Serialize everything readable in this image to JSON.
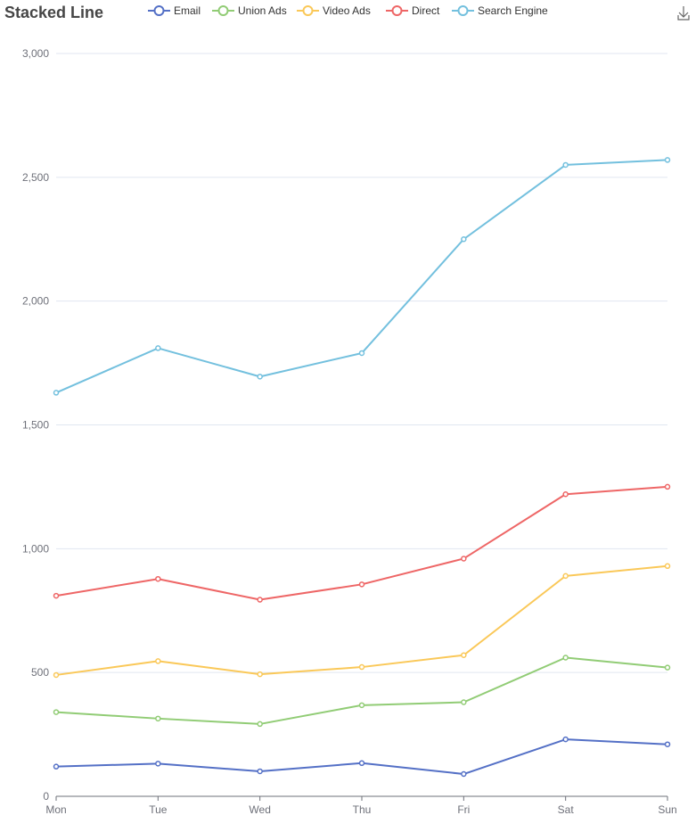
{
  "chart_data": {
    "type": "line",
    "title": "Stacked Line",
    "categories": [
      "Mon",
      "Tue",
      "Wed",
      "Thu",
      "Fri",
      "Sat",
      "Sun"
    ],
    "stacked": true,
    "ylim": [
      0,
      3000
    ],
    "yticks": [
      0,
      500,
      1000,
      1500,
      2000,
      2500,
      3000
    ],
    "ytick_labels": [
      "0",
      "500",
      "1,000",
      "1,500",
      "2,000",
      "2,500",
      "3,000"
    ],
    "grid": "horizontal",
    "legend_position": "top",
    "series": [
      {
        "name": "Email",
        "color": "#5470c6",
        "values": [
          120,
          132,
          101,
          134,
          90,
          230,
          210
        ]
      },
      {
        "name": "Union Ads",
        "color": "#91cc75",
        "values": [
          220,
          182,
          191,
          234,
          290,
          330,
          310
        ]
      },
      {
        "name": "Video Ads",
        "color": "#fac858",
        "values": [
          150,
          232,
          201,
          154,
          190,
          330,
          410
        ]
      },
      {
        "name": "Direct",
        "color": "#ee6666",
        "values": [
          320,
          332,
          301,
          334,
          390,
          330,
          320
        ]
      },
      {
        "name": "Search Engine",
        "color": "#73c0de",
        "values": [
          820,
          932,
          901,
          934,
          1290,
          1330,
          1320
        ]
      }
    ]
  },
  "toolbox": {
    "download_icon": "download-icon"
  }
}
